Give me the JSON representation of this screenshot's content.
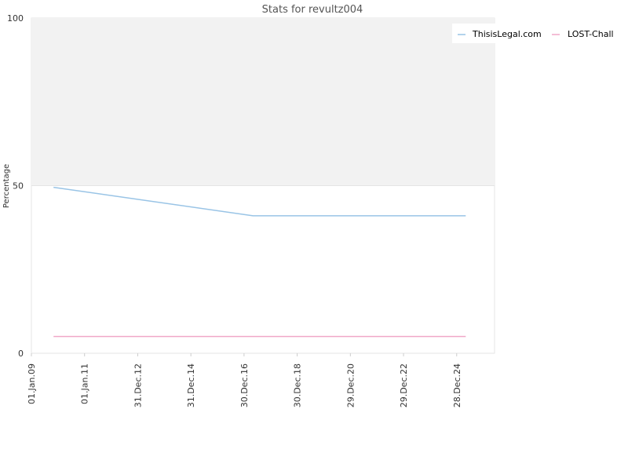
{
  "chart_data": {
    "type": "line",
    "title": "Stats for revultz004",
    "xlabel": "",
    "ylabel": "Percentage",
    "ylim": [
      0,
      100
    ],
    "y_ticks": [
      "0",
      "50",
      "100"
    ],
    "x_range": [
      "2009-01-01",
      "2026-06-01"
    ],
    "x_ticks": [
      {
        "label": "01.Jan.09",
        "date": "2009-01-01"
      },
      {
        "label": "01.Jan.11",
        "date": "2011-01-01"
      },
      {
        "label": "31.Dec.12",
        "date": "2012-12-31"
      },
      {
        "label": "31.Dec.14",
        "date": "2014-12-31"
      },
      {
        "label": "30.Dec.16",
        "date": "2016-12-30"
      },
      {
        "label": "30.Dec.18",
        "date": "2018-12-30"
      },
      {
        "label": "29.Dec.20",
        "date": "2020-12-29"
      },
      {
        "label": "29.Dec.22",
        "date": "2022-12-29"
      },
      {
        "label": "28.Dec.24",
        "date": "2024-12-28"
      }
    ],
    "grid": true,
    "upper_band_color": "#f2f2f2",
    "legend": "top-right",
    "series": [
      {
        "name": "ThisisLegal.com",
        "color": "#99c4e6",
        "points": [
          {
            "x": "2009-11-01",
            "y": 49.5
          },
          {
            "x": "2017-05-01",
            "y": 41
          },
          {
            "x": "2025-05-01",
            "y": 41
          }
        ]
      },
      {
        "name": "LOST-Chall",
        "color": "#f0a8c8",
        "points": [
          {
            "x": "2009-11-01",
            "y": 5
          },
          {
            "x": "2025-05-01",
            "y": 5
          }
        ]
      }
    ]
  }
}
